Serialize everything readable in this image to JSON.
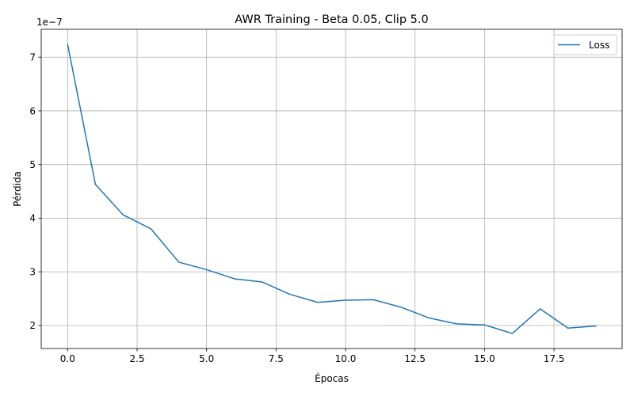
{
  "chart_data": {
    "type": "line",
    "title": "AWR Training - Beta 0.05, Clip 5.0",
    "xlabel": "Épocas",
    "ylabel": "Pérdida",
    "y_offset_text": "1e−7",
    "xlim": [
      -0.95,
      19.95
    ],
    "ylim": [
      1.57,
      7.52
    ],
    "y_scale_factor": 1e-07,
    "grid": true,
    "legend_position": "top-right",
    "x_ticks": [
      0.0,
      2.5,
      5.0,
      7.5,
      10.0,
      12.5,
      15.0,
      17.5
    ],
    "x_tick_labels": [
      "0.0",
      "2.5",
      "5.0",
      "7.5",
      "10.0",
      "12.5",
      "15.0",
      "17.5"
    ],
    "y_ticks": [
      2,
      3,
      4,
      5,
      6,
      7
    ],
    "y_tick_labels": [
      "2",
      "3",
      "4",
      "5",
      "6",
      "7"
    ],
    "series": [
      {
        "name": "Loss",
        "color": "#1f77b4",
        "x": [
          0,
          1,
          2,
          3,
          4,
          5,
          6,
          7,
          8,
          9,
          10,
          11,
          12,
          13,
          14,
          15,
          16,
          17,
          18,
          19
        ],
        "y": [
          7.24,
          4.63,
          4.06,
          3.8,
          3.18,
          3.04,
          2.87,
          2.81,
          2.58,
          2.43,
          2.47,
          2.48,
          2.34,
          2.14,
          2.03,
          2.01,
          1.85,
          2.31,
          1.95,
          1.99
        ]
      }
    ]
  }
}
